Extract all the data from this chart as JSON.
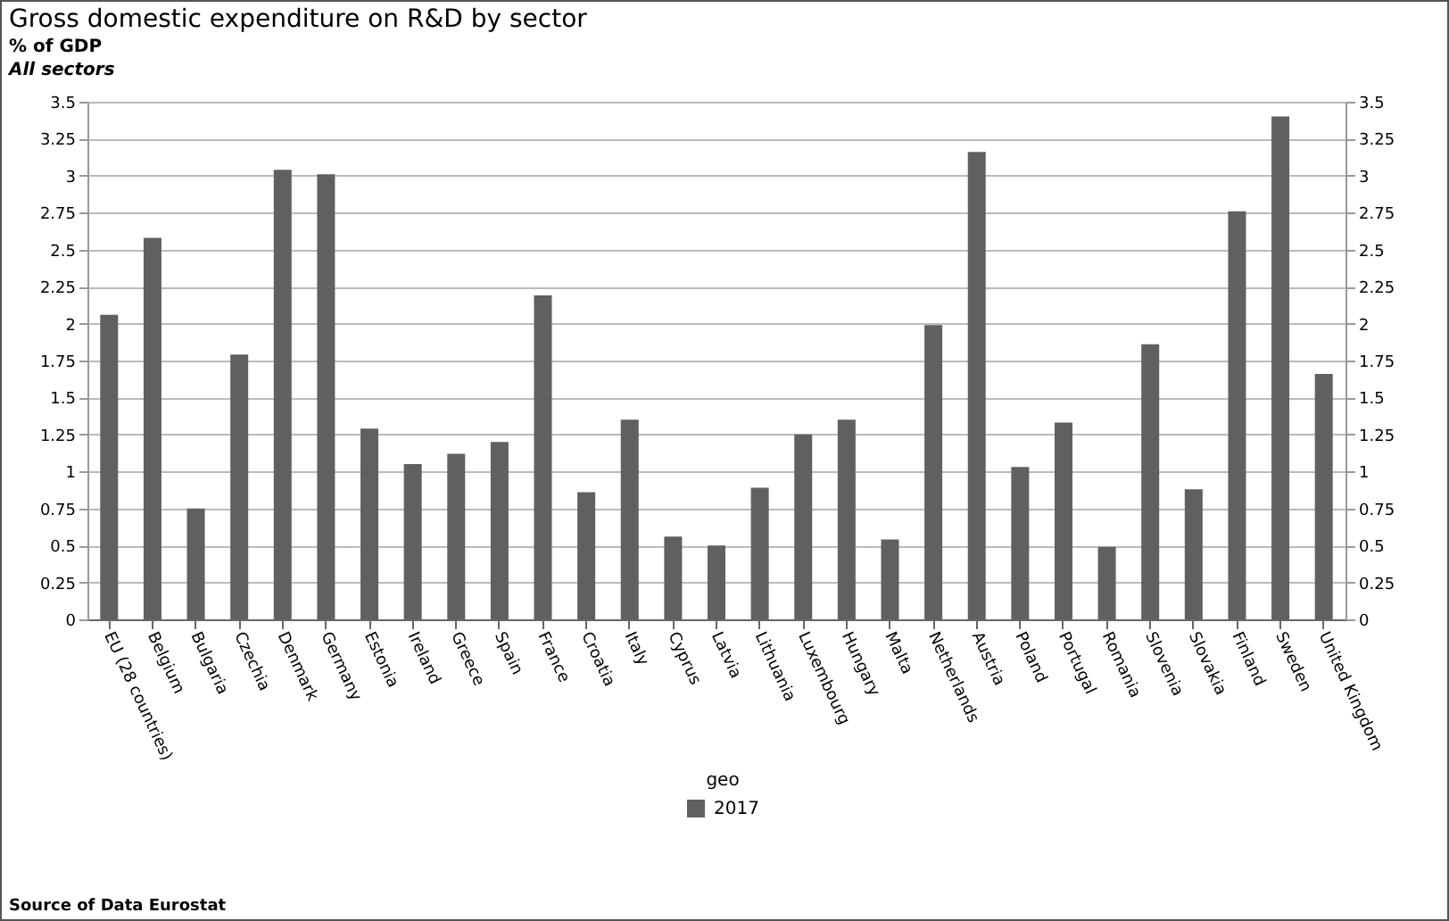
{
  "chart_data": {
    "type": "bar",
    "title": "Gross domestic expenditure on R&D by sector",
    "subtitle": "% of GDP",
    "annotations": [
      "All sectors",
      "Source of Data Eurostat"
    ],
    "categories": [
      "EU (28 countries)",
      "Belgium",
      "Bulgaria",
      "Czechia",
      "Denmark",
      "Germany",
      "Estonia",
      "Ireland",
      "Greece",
      "Spain",
      "France",
      "Croatia",
      "Italy",
      "Cyprus",
      "Latvia",
      "Lithuania",
      "Luxembourg",
      "Hungary",
      "Malta",
      "Netherlands",
      "Austria",
      "Poland",
      "Portugal",
      "Romania",
      "Slovenia",
      "Slovakia",
      "Finland",
      "Sweden",
      "United Kingdom"
    ],
    "series": [
      {
        "name": "2017",
        "color": "#606060",
        "values": [
          2.06,
          2.58,
          0.75,
          1.79,
          3.04,
          3.01,
          1.29,
          1.05,
          1.12,
          1.2,
          2.19,
          0.86,
          1.35,
          0.56,
          0.5,
          0.89,
          1.25,
          1.35,
          0.54,
          1.99,
          3.16,
          1.03,
          1.33,
          0.49,
          1.86,
          0.88,
          2.76,
          3.4,
          1.66
        ]
      }
    ],
    "legend_title": "geo",
    "legend": "bottom",
    "grid": "y",
    "ylim": [
      0,
      3.5
    ],
    "yticks": [
      0,
      0.25,
      0.5,
      0.75,
      1,
      1.25,
      1.5,
      1.75,
      2,
      2.25,
      2.5,
      2.75,
      3,
      3.25,
      3.5
    ],
    "y2lim": [
      0,
      3.5
    ],
    "y2ticks": [
      0,
      0.25,
      0.5,
      0.75,
      1,
      1.25,
      1.5,
      1.75,
      2,
      2.25,
      2.5,
      2.75,
      3,
      3.25,
      3.5
    ]
  }
}
